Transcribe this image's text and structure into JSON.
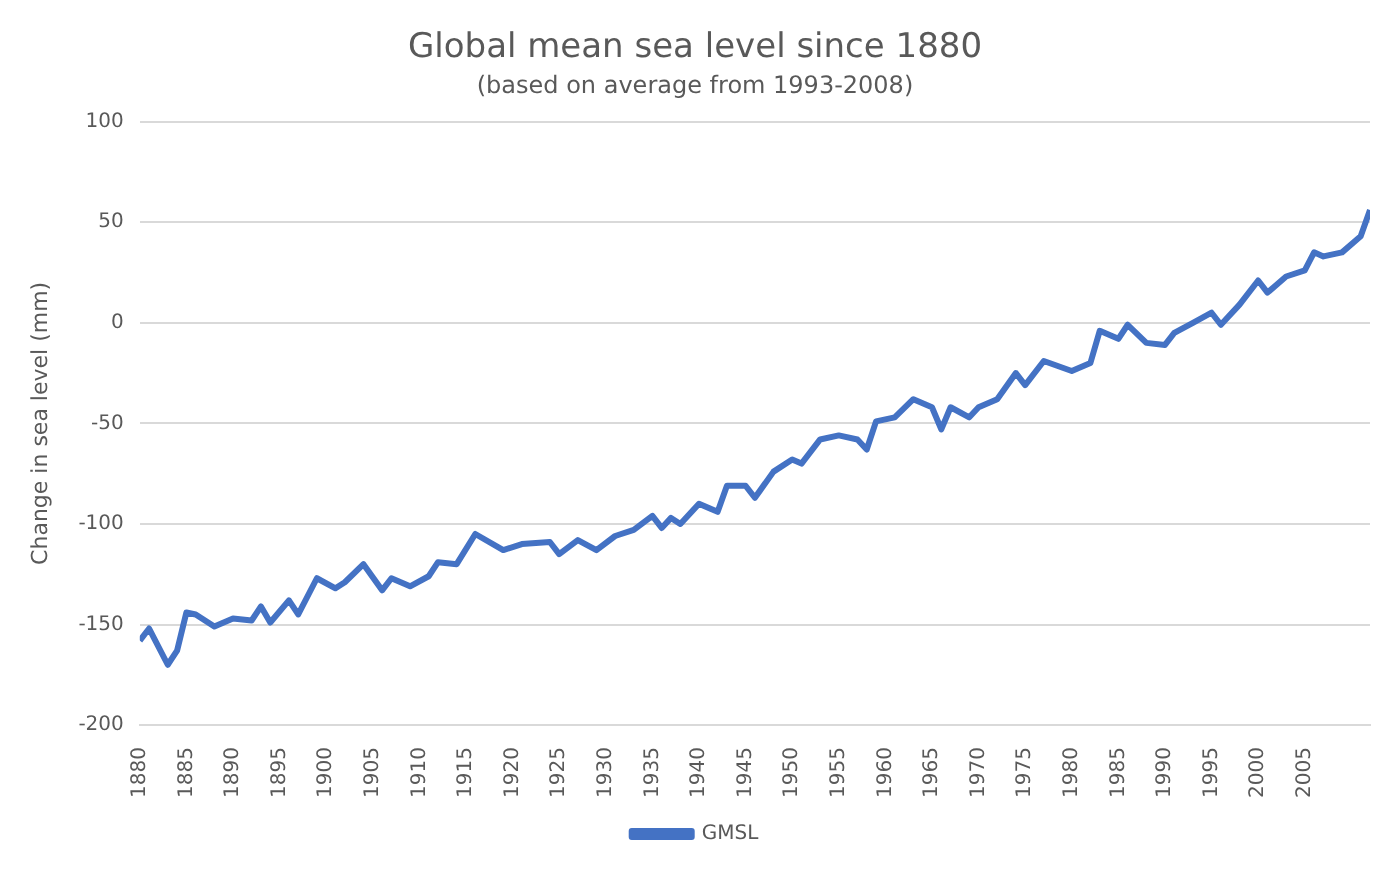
{
  "chart_data": {
    "type": "line",
    "title": "Global mean sea level since 1880",
    "subtitle": "(based on average from 1993-2008)",
    "ylabel": "Change in sea level (mm)",
    "xlim": [
      1880,
      2012
    ],
    "xticks": [
      1880,
      1885,
      1890,
      1895,
      1900,
      1905,
      1910,
      1915,
      1920,
      1925,
      1930,
      1935,
      1940,
      1945,
      1950,
      1955,
      1960,
      1965,
      1970,
      1975,
      1980,
      1985,
      1990,
      1995,
      2000,
      2005
    ],
    "ylim": [
      -200,
      100
    ],
    "yticks": [
      -200,
      -150,
      -100,
      -50,
      0,
      50,
      100
    ],
    "grid": "y",
    "legend": "bottom",
    "marker": "none",
    "line_style": "solid",
    "series": [
      {
        "name": "GMSL",
        "color": "#4472c4",
        "x": [
          1880,
          1881,
          1883,
          1884,
          1885,
          1886,
          1888,
          1890,
          1892,
          1893,
          1894,
          1896,
          1897,
          1899,
          1901,
          1902,
          1904,
          1906,
          1907,
          1909,
          1911,
          1912,
          1914,
          1916,
          1919,
          1921,
          1924,
          1925,
          1927,
          1929,
          1931,
          1933,
          1935,
          1936,
          1937,
          1938,
          1940,
          1942,
          1943,
          1945,
          1946,
          1948,
          1950,
          1951,
          1953,
          1955,
          1957,
          1958,
          1959,
          1961,
          1963,
          1965,
          1966,
          1967,
          1969,
          1970,
          1972,
          1974,
          1975,
          1977,
          1980,
          1982,
          1983,
          1985,
          1986,
          1988,
          1990,
          1991,
          1993,
          1995,
          1996,
          1998,
          2000,
          2001,
          2003,
          2005,
          2006,
          2007,
          2009,
          2011,
          2012
        ],
        "values": [
          -158,
          -152,
          -170,
          -163,
          -144,
          -145,
          -151,
          -147,
          -148,
          -141,
          -149,
          -138,
          -145,
          -127,
          -132,
          -129,
          -120,
          -133,
          -127,
          -131,
          -126,
          -119,
          -120,
          -105,
          -113,
          -110,
          -109,
          -115,
          -108,
          -113,
          -106,
          -103,
          -96,
          -102,
          -97,
          -100,
          -90,
          -94,
          -81,
          -81,
          -87,
          -74,
          -68,
          -70,
          -58,
          -56,
          -58,
          -63,
          -49,
          -47,
          -38,
          -42,
          -53,
          -42,
          -47,
          -42,
          -38,
          -25,
          -31,
          -19,
          -24,
          -20,
          -4,
          -8,
          -1,
          -10,
          -11,
          -5,
          0,
          5,
          -1,
          9,
          21,
          15,
          23,
          26,
          35,
          33,
          35,
          43,
          56
        ]
      }
    ]
  }
}
